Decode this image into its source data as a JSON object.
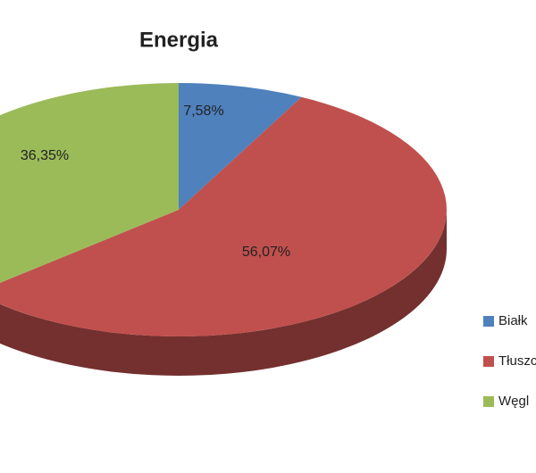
{
  "chart_data": {
    "type": "pie",
    "title": "Energia",
    "categories": [
      "Białk",
      "Tłuszc",
      "Węgl"
    ],
    "values": [
      7.58,
      56.07,
      36.35
    ],
    "value_labels": [
      "7,58%",
      "56,07%",
      "36,35%"
    ],
    "colors": [
      "#4f81bd",
      "#c0504d",
      "#9bbb59"
    ]
  }
}
